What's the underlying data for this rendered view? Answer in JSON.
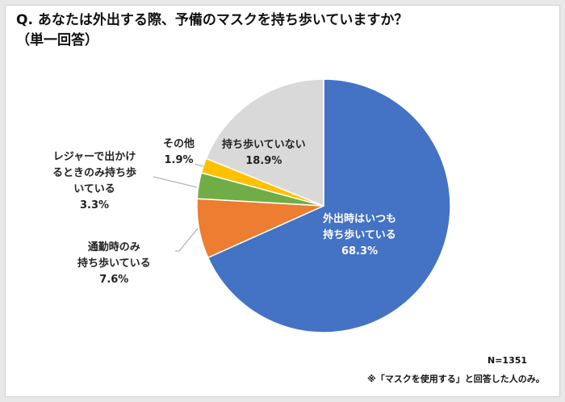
{
  "title_line1": "Q.  あなたは外出する際、予備のマスクを持ち歩いていますか？",
  "title_line2": "（単一回答）",
  "sample_size": "N=1351",
  "footnote": "※「マスクを使用する」と回答した人のみ。",
  "chart_data": {
    "type": "pie",
    "start": "12 o'clock, clockwise",
    "slices": [
      {
        "label": "外出時はいつも持ち歩いている",
        "value": 68.3,
        "value_label": "68.3%",
        "color": "#4472C4"
      },
      {
        "label": "通勤時のみ持ち歩いている",
        "value": 7.6,
        "value_label": "7.6%",
        "color": "#ED7D31"
      },
      {
        "label": "レジャーで出かけるときのみ持ち歩いている",
        "value": 3.3,
        "value_label": "3.3%",
        "color": "#70AD47"
      },
      {
        "label": "その他",
        "value": 1.9,
        "value_label": "1.9%",
        "color": "#FFC000"
      },
      {
        "label": "持ち歩いていない",
        "value": 18.9,
        "value_label": "18.9%",
        "color": "#D9D9D9"
      }
    ]
  },
  "labels": {
    "s0": [
      "外出時はいつも",
      "持ち歩いている"
    ],
    "s1": [
      "通勤時のみ",
      "持ち歩いている"
    ],
    "s2": [
      "レジャーで出かけ",
      "るときのみ持ち歩",
      "いている"
    ],
    "s3": [
      "その他"
    ],
    "s4": [
      "持ち歩いていない"
    ]
  }
}
